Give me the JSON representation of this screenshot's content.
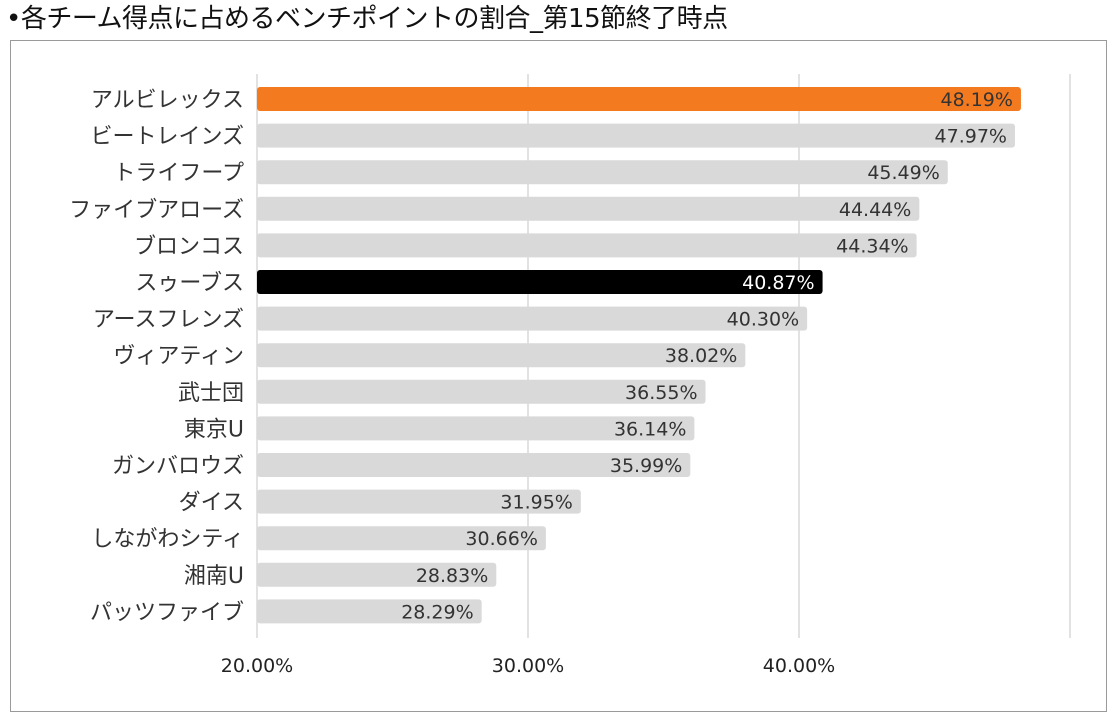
{
  "title": "•各チーム得点に占めるベンチポイントの割合_第15節終了時点",
  "colors": {
    "default_bar": "#d9d9d9",
    "highlight_orange": "#f47a1f",
    "highlight_black": "#000000",
    "gridline": "#d9d9d9",
    "label_dark": "#333333",
    "label_light": "#ffffff"
  },
  "chart_data": {
    "type": "bar",
    "orientation": "horizontal",
    "title": "•各チーム得点に占めるベンチポイントの割合_第15節終了時点",
    "xlabel": "",
    "ylabel": "",
    "xlim": [
      20,
      50
    ],
    "ticks": [
      20,
      30,
      40
    ],
    "tick_labels": [
      "20.00%",
      "30.00%",
      "40.00%"
    ],
    "gridlines": [
      20,
      30,
      40,
      50
    ],
    "grid": true,
    "legend": "none",
    "categories": [
      "アルビレックス",
      "ビートレインズ",
      "トライフープ",
      "ファイブアローズ",
      "ブロンコス",
      "スゥーブス",
      "アースフレンズ",
      "ヴィアティン",
      "武士団",
      "東京U",
      "ガンバロウズ",
      "ダイス",
      "しながわシティ",
      "湘南U",
      "パッツファイブ"
    ],
    "values": [
      48.19,
      47.97,
      45.49,
      44.44,
      44.34,
      40.87,
      40.3,
      38.02,
      36.55,
      36.14,
      35.99,
      31.95,
      30.66,
      28.83,
      28.29
    ],
    "value_labels": [
      "48.19%",
      "47.97%",
      "45.49%",
      "44.44%",
      "44.34%",
      "40.87%",
      "40.30%",
      "38.02%",
      "36.55%",
      "36.14%",
      "35.99%",
      "31.95%",
      "30.66%",
      "28.83%",
      "28.29%"
    ],
    "bar_colors": [
      "#f47a1f",
      "#d9d9d9",
      "#d9d9d9",
      "#d9d9d9",
      "#d9d9d9",
      "#000000",
      "#d9d9d9",
      "#d9d9d9",
      "#d9d9d9",
      "#d9d9d9",
      "#d9d9d9",
      "#d9d9d9",
      "#d9d9d9",
      "#d9d9d9",
      "#d9d9d9"
    ],
    "label_colors": [
      "#333333",
      "#333333",
      "#333333",
      "#333333",
      "#333333",
      "#ffffff",
      "#333333",
      "#333333",
      "#333333",
      "#333333",
      "#333333",
      "#333333",
      "#333333",
      "#333333",
      "#333333"
    ]
  }
}
